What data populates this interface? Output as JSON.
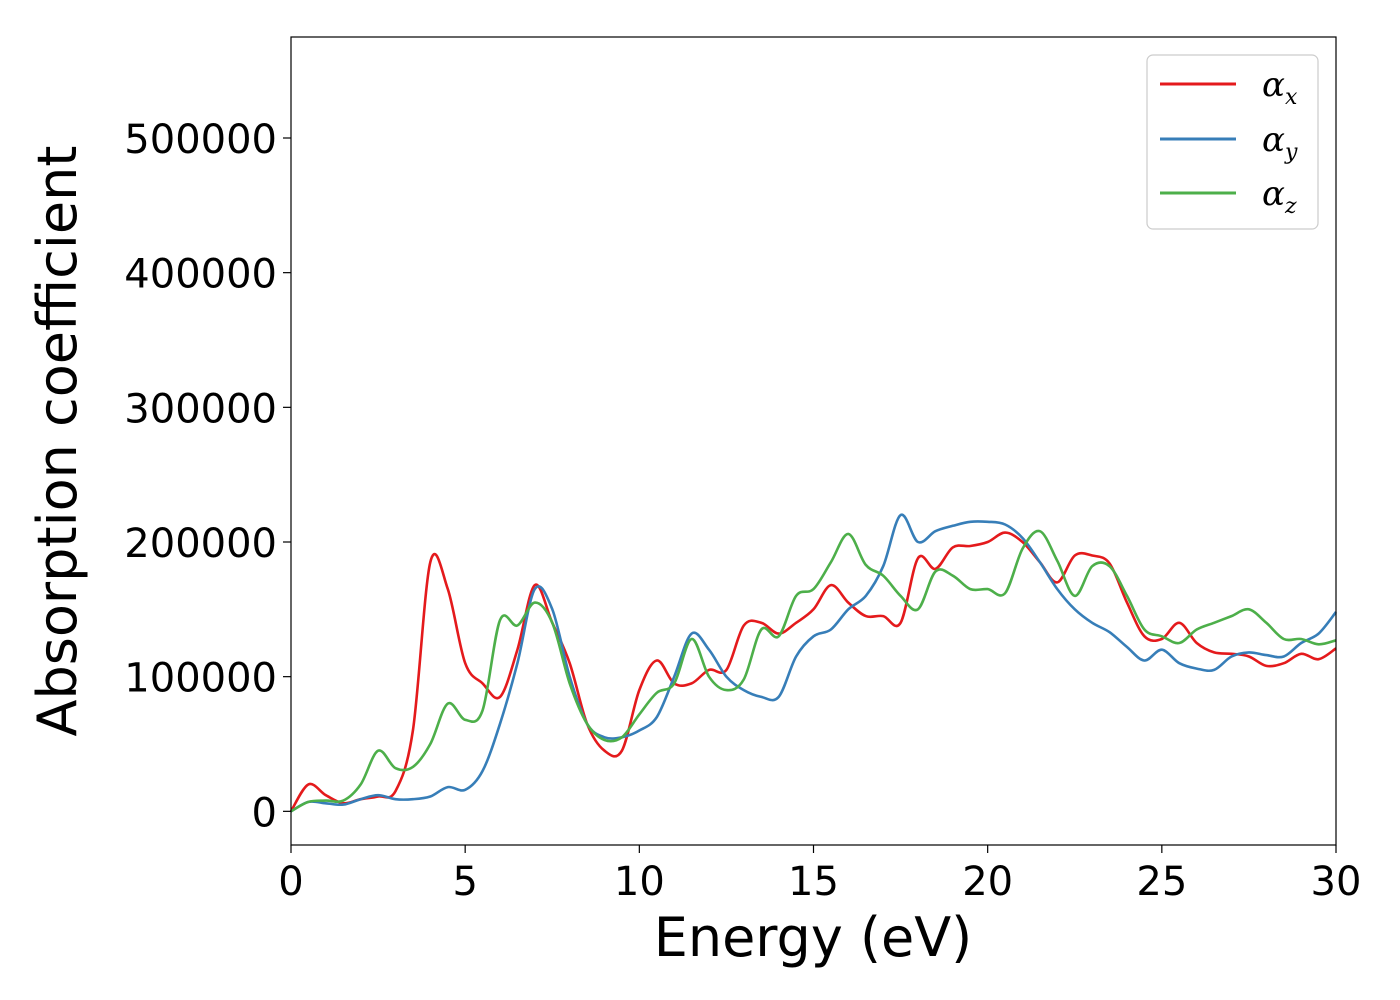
{
  "chart_data": {
    "type": "line",
    "xlabel": "Energy (eV)",
    "ylabel": "Absorption coefficient",
    "xlim": [
      0,
      30
    ],
    "ylim": [
      -25000,
      575000
    ],
    "xticks": [
      "0",
      "5",
      "10",
      "15",
      "20",
      "25",
      "30"
    ],
    "yticks": [
      "0",
      "100000",
      "200000",
      "300000",
      "400000",
      "500000"
    ],
    "grid": false,
    "legend_position": "top-right",
    "x": [
      0,
      0.5,
      1,
      1.5,
      2,
      2.5,
      3,
      3.5,
      4,
      4.5,
      5,
      5.5,
      6,
      6.5,
      7,
      7.5,
      8,
      8.5,
      9,
      9.5,
      10,
      10.5,
      11,
      11.5,
      12,
      12.5,
      13,
      13.5,
      14,
      14.5,
      15,
      15.5,
      16,
      16.5,
      17,
      17.5,
      18,
      18.5,
      19,
      19.5,
      20,
      20.5,
      21,
      21.5,
      22,
      22.5,
      23,
      23.5,
      24,
      24.5,
      25,
      25.5,
      26,
      26.5,
      27,
      27.5,
      28,
      28.5,
      29,
      29.5,
      30
    ],
    "series": [
      {
        "name_base": "α",
        "name_sub": "x",
        "color": "#e41a1c",
        "values": [
          0,
          20000,
          12000,
          6000,
          9000,
          11000,
          15000,
          60000,
          185000,
          165000,
          110000,
          95000,
          85000,
          120000,
          168000,
          140000,
          110000,
          65000,
          45000,
          45000,
          90000,
          112000,
          95000,
          95000,
          105000,
          105000,
          138000,
          140000,
          132000,
          140000,
          150000,
          168000,
          155000,
          145000,
          145000,
          140000,
          188000,
          180000,
          196000,
          197000,
          200000,
          207000,
          200000,
          185000,
          170000,
          190000,
          190000,
          184000,
          155000,
          130000,
          128000,
          140000,
          125000,
          118000,
          117000,
          115000,
          108000,
          110000,
          117000,
          113000,
          121000
        ]
      },
      {
        "name_base": "α",
        "name_sub": "y",
        "color": "#377eb8",
        "values": [
          0,
          7000,
          6000,
          5000,
          9000,
          12000,
          9000,
          9000,
          11000,
          18000,
          16000,
          30000,
          65000,
          110000,
          165000,
          150000,
          100000,
          65000,
          55000,
          55000,
          60000,
          70000,
          100000,
          132000,
          120000,
          100000,
          90000,
          85000,
          85000,
          115000,
          130000,
          135000,
          150000,
          160000,
          182000,
          220000,
          200000,
          208000,
          212000,
          215000,
          215000,
          213000,
          203000,
          185000,
          165000,
          150000,
          140000,
          133000,
          122000,
          112000,
          120000,
          110000,
          106000,
          105000,
          115000,
          118000,
          116000,
          115000,
          125000,
          132000,
          148000
        ]
      },
      {
        "name_base": "α",
        "name_sub": "z",
        "color": "#4daf4a",
        "values": [
          0,
          7000,
          8000,
          8000,
          20000,
          45000,
          32000,
          33000,
          50000,
          80000,
          68000,
          75000,
          142000,
          138000,
          155000,
          140000,
          95000,
          65000,
          53000,
          55000,
          72000,
          88000,
          95000,
          128000,
          100000,
          90000,
          98000,
          135000,
          130000,
          160000,
          165000,
          185000,
          206000,
          183000,
          175000,
          160000,
          150000,
          178000,
          175000,
          165000,
          165000,
          162000,
          195000,
          208000,
          186000,
          160000,
          182000,
          182000,
          160000,
          135000,
          130000,
          125000,
          135000,
          140000,
          145000,
          150000,
          140000,
          128000,
          128000,
          124000,
          127000
        ]
      }
    ]
  }
}
